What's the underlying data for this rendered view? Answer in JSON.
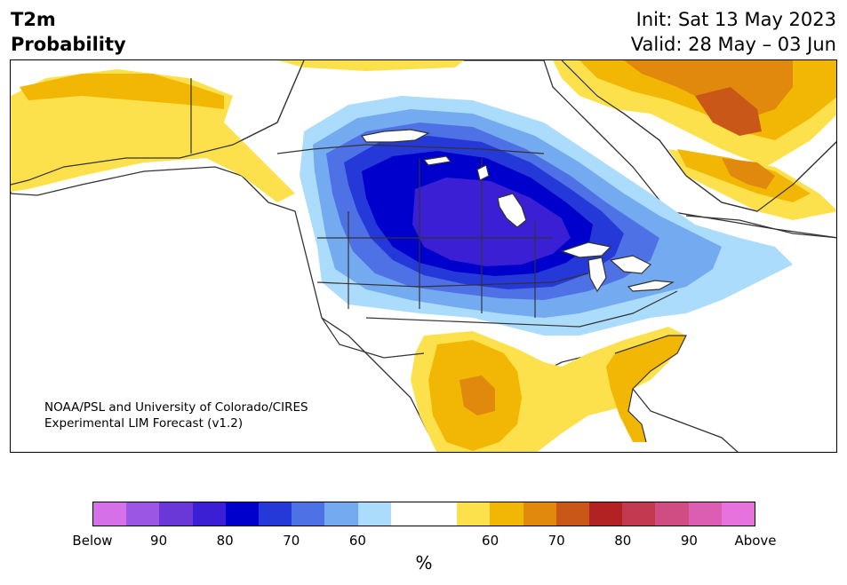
{
  "header": {
    "variable": "T2m",
    "kind": "Probability",
    "init": "Init: Sat 13 May 2023",
    "valid": "Valid: 28 May – 03 Jun"
  },
  "map": {
    "credit_line1": "NOAA/PSL and University of Colorado/CIRES",
    "credit_line2": "Experimental LIM Forecast (v1.2)",
    "region": "North America",
    "anomalies": [
      {
        "area": "north-central US / central Canada",
        "category": "below",
        "max_level": "80"
      },
      {
        "area": "southern Texas",
        "category": "above",
        "max_level": "70"
      },
      {
        "area": "Florida / Southeast US",
        "category": "above",
        "max_level": "60"
      },
      {
        "area": "Greenland",
        "category": "above",
        "max_level": "70"
      },
      {
        "area": "Alaska",
        "category": "above",
        "max_level": "60"
      }
    ]
  },
  "colorbar": {
    "colors": [
      "#d670e8",
      "#9b57e3",
      "#6a38d6",
      "#3a1fd4",
      "#0000cd",
      "#2538d8",
      "#4f71e6",
      "#73aaf0",
      "#acdcfb",
      "#ffffff",
      "#ffffff",
      "#fde14c",
      "#f2b705",
      "#e0890d",
      "#c95717",
      "#b22222",
      "#c23950",
      "#cf4d82",
      "#db5eb3",
      "#e772de"
    ],
    "labels": [
      "Below",
      "90",
      "80",
      "70",
      "60",
      "60",
      "70",
      "80",
      "90",
      "Above"
    ],
    "unit": "%"
  }
}
